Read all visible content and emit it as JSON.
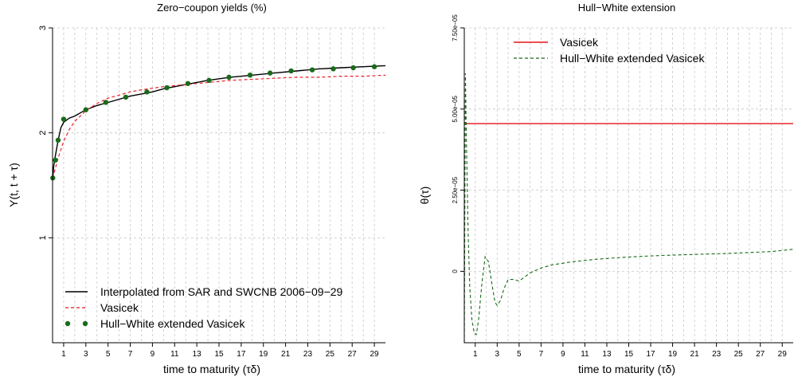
{
  "chart_data": [
    {
      "type": "line",
      "title": "Zero−coupon yields (%)",
      "xlabel": "time to maturity (τδ)",
      "ylabel": "Y(t, t + τ)",
      "xlim": [
        0,
        30
      ],
      "ylim": [
        0,
        3
      ],
      "x_ticks": [
        "1",
        "3",
        "5",
        "7",
        "9",
        "11",
        "13",
        "15",
        "17",
        "19",
        "21",
        "23",
        "25",
        "27",
        "29"
      ],
      "y_ticks": [
        "1",
        "2",
        "3"
      ],
      "grid": true,
      "legend_position": "bottom-left",
      "series": [
        {
          "name": "Interpolated from SAR and SWCNB 2006−09−29",
          "color": "#000000",
          "style": "solid",
          "x": [
            0.02,
            0.1,
            0.25,
            0.5,
            0.75,
            1,
            1.5,
            2,
            3,
            4,
            5,
            6,
            7,
            8,
            9,
            10,
            12,
            14,
            16,
            18,
            20,
            22,
            24,
            26,
            28,
            30
          ],
          "y": [
            1.57,
            1.68,
            1.78,
            1.93,
            2.05,
            2.1,
            2.14,
            2.16,
            2.22,
            2.26,
            2.29,
            2.32,
            2.35,
            2.37,
            2.39,
            2.42,
            2.46,
            2.5,
            2.53,
            2.55,
            2.57,
            2.59,
            2.61,
            2.62,
            2.63,
            2.64
          ]
        },
        {
          "name": "Vasicek",
          "color": "#e8141c",
          "style": "dashed",
          "x": [
            0.02,
            0.25,
            0.5,
            1,
            1.5,
            2,
            3,
            4,
            5,
            6,
            7,
            8,
            10,
            12,
            14,
            16,
            18,
            20,
            22,
            24,
            26,
            28,
            30
          ],
          "y": [
            1.57,
            1.66,
            1.76,
            1.92,
            2.03,
            2.11,
            2.21,
            2.28,
            2.33,
            2.36,
            2.39,
            2.41,
            2.44,
            2.46,
            2.48,
            2.5,
            2.51,
            2.52,
            2.53,
            2.53,
            2.54,
            2.54,
            2.55
          ]
        },
        {
          "name": "Hull−White extended Vasicek",
          "color": "#1a6b1a",
          "style": "points",
          "x": [
            0.02,
            0.25,
            0.5,
            1,
            3,
            4.8,
            6.6,
            8.5,
            10.3,
            12.2,
            14.1,
            15.9,
            17.8,
            19.6,
            21.5,
            23.4,
            25.3,
            27.1,
            29
          ],
          "y": [
            1.57,
            1.74,
            1.93,
            2.13,
            2.22,
            2.29,
            2.34,
            2.39,
            2.43,
            2.47,
            2.5,
            2.53,
            2.55,
            2.57,
            2.59,
            2.6,
            2.61,
            2.62,
            2.63
          ]
        }
      ]
    },
    {
      "type": "line",
      "title": "Hull−White extension",
      "xlabel": "time to maturity (τδ)",
      "ylabel": "θ(τ)",
      "xlim": [
        0,
        30
      ],
      "ylim": [
        -2.2e-05,
        7.5e-05
      ],
      "x_ticks": [
        "1",
        "3",
        "5",
        "7",
        "9",
        "11",
        "13",
        "15",
        "17",
        "19",
        "21",
        "23",
        "25",
        "27",
        "29"
      ],
      "y_ticks": [
        "0",
        "2.50e−05",
        "5.00e−05",
        "7.50e−05"
      ],
      "grid": true,
      "legend_position": "top-left",
      "series": [
        {
          "name": "Vasicek",
          "color": "#e8141c",
          "style": "solid",
          "x": [
            0,
            30
          ],
          "y": [
            4.55e-05,
            4.55e-05
          ]
        },
        {
          "name": "Hull−White extended Vasicek",
          "color": "#1a6b1a",
          "style": "dashed",
          "x": [
            0,
            0.1,
            0.2,
            0.35,
            0.5,
            0.7,
            0.9,
            1.1,
            1.3,
            1.6,
            1.9,
            2.2,
            2.5,
            2.8,
            3,
            3.3,
            3.6,
            4,
            4.5,
            5,
            6,
            7,
            8,
            9,
            10,
            12,
            14,
            16,
            18,
            20,
            22,
            24,
            26,
            28,
            30
          ],
          "y": [
            -2.2e-05,
            6.1e-05,
            3.85e-05,
            1.2e-05,
            -5e-06,
            -1.5e-05,
            -1.9e-05,
            -1.95e-05,
            -1.5e-05,
            -4e-06,
            4.5e-06,
            3e-06,
            -3.5e-06,
            -9.5e-06,
            -1.05e-05,
            -9e-06,
            -5.5e-06,
            -2.5e-06,
            -2.5e-06,
            -3e-06,
            -5e-07,
            1e-06,
            2e-06,
            2.5e-06,
            3e-06,
            3.7e-06,
            4.2e-06,
            4.6e-06,
            4.9e-06,
            5.1e-06,
            5.3e-06,
            5.5e-06,
            5.8e-06,
            6.1e-06,
            6.8e-06
          ]
        }
      ]
    }
  ]
}
